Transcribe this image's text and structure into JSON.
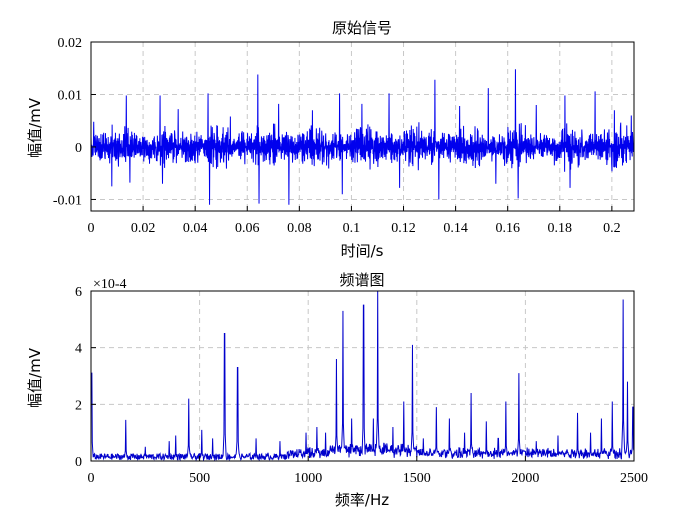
{
  "chart_data": [
    {
      "type": "line",
      "title": "原始信号",
      "xlabel": "时间/s",
      "ylabel": "幅值/mV",
      "xlim": [
        0,
        0.2085
      ],
      "ylim": [
        -0.0122,
        0.02
      ],
      "xticks": [
        0,
        0.02,
        0.04,
        0.06,
        0.08,
        0.1,
        0.12,
        0.14,
        0.16,
        0.18,
        0.2
      ],
      "xtick_labels": [
        "0",
        "0.02",
        "0.04",
        "0.06",
        "0.08",
        "0.1",
        "0.12",
        "0.14",
        "0.16",
        "0.18",
        "0.2"
      ],
      "yticks": [
        -0.01,
        0,
        0.01,
        0.02
      ],
      "ytick_labels": [
        "-0.01",
        "0",
        "0.01",
        "0.02"
      ],
      "grid": true,
      "color": "#0000ee",
      "spikes": [
        {
          "x": 0.001,
          "y": 0.0048
        },
        {
          "x": 0.008,
          "y": -0.0075
        },
        {
          "x": 0.0135,
          "y": 0.0098
        },
        {
          "x": 0.015,
          "y": -0.0068
        },
        {
          "x": 0.0265,
          "y": 0.0098
        },
        {
          "x": 0.0275,
          "y": -0.007
        },
        {
          "x": 0.0335,
          "y": 0.0072
        },
        {
          "x": 0.045,
          "y": 0.0102
        },
        {
          "x": 0.0455,
          "y": -0.011
        },
        {
          "x": 0.0535,
          "y": 0.0058
        },
        {
          "x": 0.064,
          "y": 0.0138
        },
        {
          "x": 0.0645,
          "y": -0.0108
        },
        {
          "x": 0.072,
          "y": 0.0082
        },
        {
          "x": 0.076,
          "y": -0.011
        },
        {
          "x": 0.085,
          "y": 0.007
        },
        {
          "x": 0.0955,
          "y": 0.0102
        },
        {
          "x": 0.0965,
          "y": -0.009
        },
        {
          "x": 0.104,
          "y": 0.0082
        },
        {
          "x": 0.1145,
          "y": 0.0102
        },
        {
          "x": 0.1185,
          "y": -0.0078
        },
        {
          "x": 0.132,
          "y": 0.0128
        },
        {
          "x": 0.1335,
          "y": -0.01
        },
        {
          "x": 0.1415,
          "y": 0.0078
        },
        {
          "x": 0.1525,
          "y": 0.0112
        },
        {
          "x": 0.1555,
          "y": -0.007
        },
        {
          "x": 0.163,
          "y": 0.0148
        },
        {
          "x": 0.164,
          "y": -0.0098
        },
        {
          "x": 0.171,
          "y": 0.008
        },
        {
          "x": 0.182,
          "y": 0.0098
        },
        {
          "x": 0.184,
          "y": -0.0078
        },
        {
          "x": 0.1935,
          "y": 0.0106
        },
        {
          "x": 0.201,
          "y": 0.007
        },
        {
          "x": 0.2075,
          "y": 0.006
        }
      ]
    },
    {
      "type": "line",
      "title": "频谱图",
      "xlabel": "频率/Hz",
      "ylabel": "幅值/mV",
      "xlim": [
        0,
        2500
      ],
      "ylim": [
        0,
        0.0006
      ],
      "scale_multiplier": "×10-4",
      "xticks": [
        0,
        500,
        1000,
        1500,
        2000,
        2500
      ],
      "xtick_labels": [
        "0",
        "500",
        "1000",
        "1500",
        "2000",
        "2500"
      ],
      "yticks": [
        0,
        0.0002,
        0.0004,
        0.0006
      ],
      "ytick_labels": [
        "0",
        "2",
        "4",
        "6"
      ],
      "grid": true,
      "color": "#0000cc",
      "peaks": [
        {
          "x": 3,
          "y": 0.00031
        },
        {
          "x": 160,
          "y": 0.000145
        },
        {
          "x": 250,
          "y": 5e-05
        },
        {
          "x": 360,
          "y": 7e-05
        },
        {
          "x": 390,
          "y": 9e-05
        },
        {
          "x": 450,
          "y": 0.00022
        },
        {
          "x": 510,
          "y": 0.00011
        },
        {
          "x": 560,
          "y": 8e-05
        },
        {
          "x": 615,
          "y": 0.00045
        },
        {
          "x": 675,
          "y": 0.00033
        },
        {
          "x": 760,
          "y": 8e-05
        },
        {
          "x": 870,
          "y": 7e-05
        },
        {
          "x": 990,
          "y": 0.0001
        },
        {
          "x": 1040,
          "y": 0.00012
        },
        {
          "x": 1080,
          "y": 0.0001
        },
        {
          "x": 1130,
          "y": 0.00036
        },
        {
          "x": 1160,
          "y": 0.00053
        },
        {
          "x": 1200,
          "y": 0.00015
        },
        {
          "x": 1255,
          "y": 0.00055
        },
        {
          "x": 1300,
          "y": 0.00015
        },
        {
          "x": 1320,
          "y": 0.0006
        },
        {
          "x": 1390,
          "y": 0.00012
        },
        {
          "x": 1440,
          "y": 0.00021
        },
        {
          "x": 1480,
          "y": 0.00041
        },
        {
          "x": 1530,
          "y": 8e-05
        },
        {
          "x": 1590,
          "y": 0.00019
        },
        {
          "x": 1650,
          "y": 0.00015
        },
        {
          "x": 1720,
          "y": 0.0001
        },
        {
          "x": 1750,
          "y": 0.00024
        },
        {
          "x": 1820,
          "y": 0.00014
        },
        {
          "x": 1875,
          "y": 8e-05
        },
        {
          "x": 1910,
          "y": 0.00021
        },
        {
          "x": 1970,
          "y": 0.00031
        },
        {
          "x": 2050,
          "y": 7e-05
        },
        {
          "x": 2150,
          "y": 9e-05
        },
        {
          "x": 2240,
          "y": 0.00017
        },
        {
          "x": 2300,
          "y": 0.0001
        },
        {
          "x": 2350,
          "y": 0.00015
        },
        {
          "x": 2400,
          "y": 0.00021
        },
        {
          "x": 2450,
          "y": 0.00057
        },
        {
          "x": 2470,
          "y": 0.00028
        },
        {
          "x": 2495,
          "y": 0.00019
        }
      ]
    }
  ]
}
